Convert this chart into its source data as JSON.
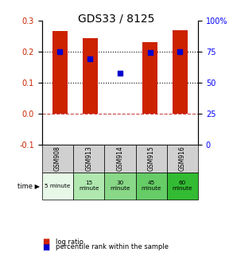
{
  "title": "GDS33 / 8125",
  "categories": [
    "GSM908",
    "GSM913",
    "GSM914",
    "GSM915",
    "GSM916"
  ],
  "time_labels": [
    "5 minute",
    "15\nminute",
    "30\nminute",
    "45\nminute",
    "60\nminute"
  ],
  "time_colors": [
    "#d9f0d9",
    "#98e098",
    "#66cc66",
    "#44bb44",
    "#22aa22"
  ],
  "bar_values": [
    0.268,
    0.245,
    0.0,
    0.232,
    0.27
  ],
  "blue_values": [
    0.2,
    0.178,
    0.13,
    0.198,
    0.2
  ],
  "bar_color": "#cc2200",
  "blue_color": "#0000cc",
  "ylim_left": [
    -0.1,
    0.3
  ],
  "ylim_right": [
    0,
    100
  ],
  "yticks_left": [
    -0.1,
    0.0,
    0.1,
    0.2,
    0.3
  ],
  "yticks_right": [
    0,
    25,
    50,
    75,
    100
  ],
  "ytick_labels_right": [
    "0",
    "25",
    "50",
    "75",
    "100%"
  ],
  "hline_y": [
    0.1,
    0.2
  ],
  "zero_line_y": 0.0,
  "bar_width": 0.5,
  "legend_items": [
    "log ratio",
    "percentile rank within the sample"
  ],
  "legend_colors": [
    "#cc2200",
    "#0000cc"
  ],
  "bg_color": "#ffffff",
  "plot_bg_color": "#ffffff",
  "grid_color": "#000000",
  "time_row_lighter": [
    "#e8f8e8",
    "#b8e8b8",
    "#88d888",
    "#66cc66",
    "#44bb44"
  ]
}
